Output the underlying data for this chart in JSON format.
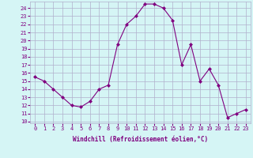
{
  "x": [
    0,
    1,
    2,
    3,
    4,
    5,
    6,
    7,
    8,
    9,
    10,
    11,
    12,
    13,
    14,
    15,
    16,
    17,
    18,
    19,
    20,
    21,
    22,
    23
  ],
  "y": [
    15.5,
    15.0,
    14.0,
    13.0,
    12.0,
    11.8,
    12.5,
    14.0,
    14.5,
    19.5,
    22.0,
    23.0,
    24.5,
    24.5,
    24.0,
    22.5,
    17.0,
    19.5,
    15.0,
    16.5,
    14.5,
    10.5,
    11.0,
    11.5
  ],
  "line_color": "#800080",
  "marker": "D",
  "marker_size": 2,
  "bg_color": "#d5f5f5",
  "grid_color": "#b0b0cc",
  "xlabel": "Windchill (Refroidissement éolien,°C)",
  "xlabel_color": "#800080",
  "ylabel_ticks": [
    10,
    11,
    12,
    13,
    14,
    15,
    16,
    17,
    18,
    19,
    20,
    21,
    22,
    23,
    24
  ],
  "ylim": [
    9.8,
    24.8
  ],
  "xlim": [
    -0.5,
    23.5
  ],
  "font_color": "#800080",
  "tick_labelsize": 5,
  "xlabel_fontsize": 5.5
}
